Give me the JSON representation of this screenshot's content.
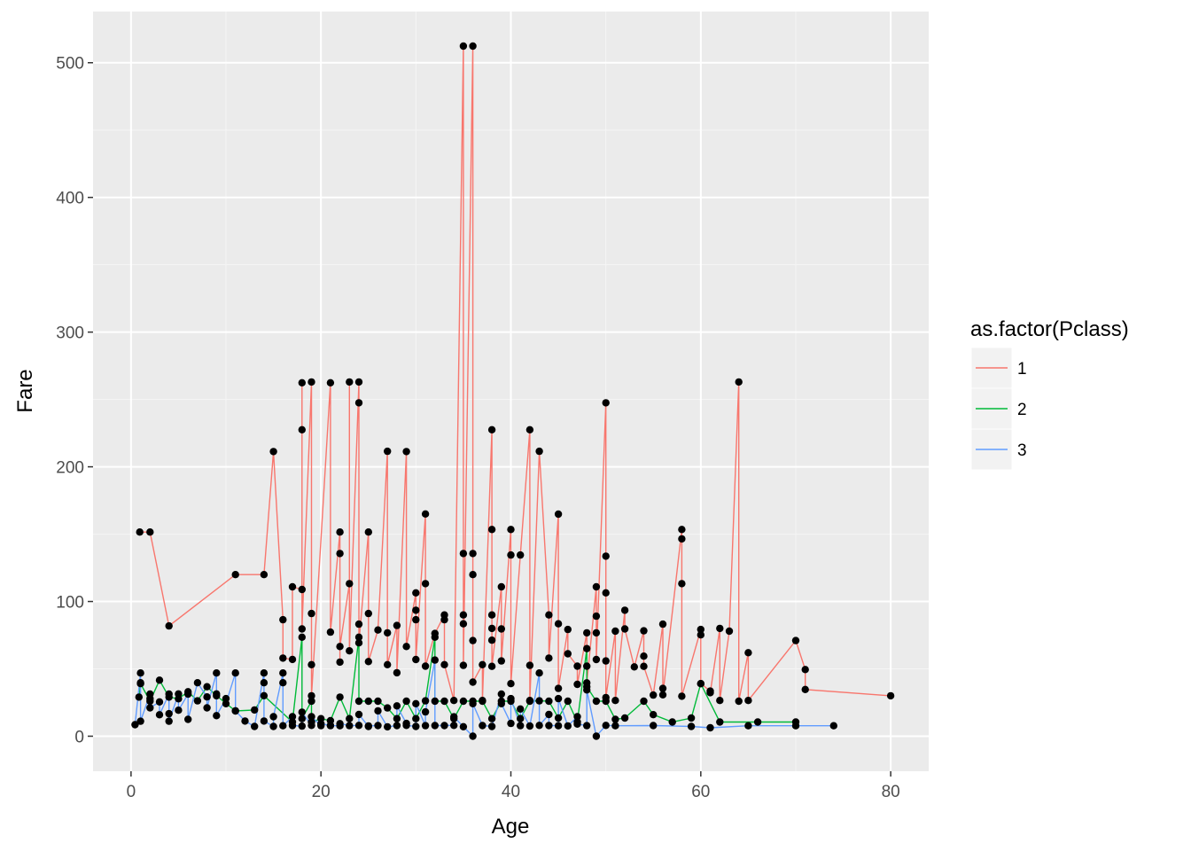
{
  "chart_data": {
    "type": "line",
    "xlabel": "Age",
    "ylabel": "Fare",
    "xlim": [
      -4,
      84
    ],
    "ylim": [
      -26,
      538
    ],
    "x_ticks": [
      0,
      20,
      40,
      60,
      80
    ],
    "y_ticks": [
      0,
      100,
      200,
      300,
      400,
      500
    ],
    "x_tick_labels": [
      "0",
      "20",
      "40",
      "60",
      "80"
    ],
    "y_tick_labels": [
      "0",
      "100",
      "200",
      "300",
      "400",
      "500"
    ],
    "grid": true,
    "legend": {
      "title": "as.factor(Pclass)",
      "position": "right"
    },
    "series": [
      {
        "name": "1",
        "color": "#F8766D",
        "points": [
          [
            0.92,
            151.55
          ],
          [
            2,
            151.55
          ],
          [
            4,
            81.86
          ],
          [
            11,
            120
          ],
          [
            14,
            120
          ],
          [
            15,
            211.34
          ],
          [
            16,
            86.5
          ],
          [
            16,
            57.98
          ],
          [
            17,
            57
          ],
          [
            17,
            110.88
          ],
          [
            18,
            108.9
          ],
          [
            18,
            262.38
          ],
          [
            18,
            227.53
          ],
          [
            18,
            79.65
          ],
          [
            19,
            263
          ],
          [
            19,
            91.08
          ],
          [
            19,
            53.1
          ],
          [
            19,
            30
          ],
          [
            21,
            262.38
          ],
          [
            21,
            77.29
          ],
          [
            22,
            151.55
          ],
          [
            22,
            135.63
          ],
          [
            22,
            55
          ],
          [
            22,
            66.6
          ],
          [
            23,
            113.28
          ],
          [
            23,
            263
          ],
          [
            23,
            63.36
          ],
          [
            24,
            263
          ],
          [
            24,
            247.52
          ],
          [
            24,
            83.16
          ],
          [
            24,
            69.3
          ],
          [
            25,
            151.55
          ],
          [
            25,
            91.08
          ],
          [
            25,
            55.44
          ],
          [
            26,
            78.85
          ],
          [
            27,
            211.5
          ],
          [
            27,
            76.73
          ],
          [
            27,
            53.1
          ],
          [
            28,
            82.17
          ],
          [
            28,
            47.1
          ],
          [
            29,
            211.34
          ],
          [
            29,
            66.6
          ],
          [
            30,
            106.43
          ],
          [
            30,
            93.5
          ],
          [
            30,
            86.5
          ],
          [
            30,
            56.93
          ],
          [
            31,
            165
          ],
          [
            31,
            113.28
          ],
          [
            31,
            52
          ],
          [
            32,
            76.29
          ],
          [
            33,
            90
          ],
          [
            33,
            86.5
          ],
          [
            33,
            53.1
          ],
          [
            34,
            26.55
          ],
          [
            35,
            512.33
          ],
          [
            35,
            135.63
          ],
          [
            35,
            90
          ],
          [
            35,
            83.47
          ],
          [
            35,
            52.55
          ],
          [
            36,
            512.33
          ],
          [
            36,
            135.63
          ],
          [
            36,
            120
          ],
          [
            36,
            71
          ],
          [
            36,
            40.13
          ],
          [
            37,
            53.1
          ],
          [
            37,
            26.55
          ],
          [
            38,
            227.53
          ],
          [
            38,
            153.46
          ],
          [
            38,
            90
          ],
          [
            38,
            80
          ],
          [
            38,
            71.28
          ],
          [
            38,
            51.86
          ],
          [
            39,
            110.88
          ],
          [
            39,
            79.65
          ],
          [
            39,
            55.9
          ],
          [
            40,
            153.46
          ],
          [
            40,
            134.5
          ],
          [
            40,
            39
          ],
          [
            41,
            134.5
          ],
          [
            42,
            227.53
          ],
          [
            42,
            52.55
          ],
          [
            42,
            26.55
          ],
          [
            43,
            211.5
          ],
          [
            44,
            90
          ],
          [
            44,
            57.98
          ],
          [
            45,
            164.87
          ],
          [
            45,
            83.47
          ],
          [
            45,
            35.5
          ],
          [
            46,
            79.2
          ],
          [
            46,
            61.18
          ],
          [
            47,
            52
          ],
          [
            47,
            38.5
          ],
          [
            48,
            76.73
          ],
          [
            48,
            52
          ],
          [
            48,
            39.6
          ],
          [
            49,
            110.88
          ],
          [
            49,
            89.1
          ],
          [
            49,
            76.73
          ],
          [
            49,
            56.93
          ],
          [
            50,
            247.52
          ],
          [
            50,
            133.65
          ],
          [
            50,
            106.43
          ],
          [
            50,
            55.9
          ],
          [
            50,
            28.71
          ],
          [
            51,
            77.96
          ],
          [
            51,
            26.55
          ],
          [
            52,
            93.5
          ],
          [
            52,
            79.65
          ],
          [
            53,
            51.48
          ],
          [
            54,
            78.27
          ],
          [
            54,
            59.4
          ],
          [
            54,
            51.86
          ],
          [
            55,
            30.5
          ],
          [
            56,
            83.16
          ],
          [
            56,
            35.5
          ],
          [
            56,
            30.7
          ],
          [
            58,
            153.46
          ],
          [
            58,
            146.52
          ],
          [
            58,
            113.28
          ],
          [
            58,
            29.7
          ],
          [
            60,
            79.2
          ],
          [
            60,
            75.25
          ],
          [
            60,
            39
          ],
          [
            61,
            33.5
          ],
          [
            61,
            32.32
          ],
          [
            62,
            80
          ],
          [
            62,
            26.55
          ],
          [
            63,
            77.96
          ],
          [
            64,
            263
          ],
          [
            64,
            26
          ],
          [
            65,
            61.98
          ],
          [
            65,
            26.55
          ],
          [
            70,
            71
          ],
          [
            71,
            49.5
          ],
          [
            71,
            34.65
          ],
          [
            80,
            30
          ]
        ]
      },
      {
        "name": "2",
        "color": "#00BA38",
        "points": [
          [
            0.83,
            29
          ],
          [
            1,
            39
          ],
          [
            2,
            26
          ],
          [
            3,
            41.58
          ],
          [
            4,
            29
          ],
          [
            5,
            27.75
          ],
          [
            6,
            33
          ],
          [
            7,
            26.25
          ],
          [
            8,
            36.75
          ],
          [
            9,
            30
          ],
          [
            11,
            18.75
          ],
          [
            13,
            19.5
          ],
          [
            14,
            30.07
          ],
          [
            17,
            10.5
          ],
          [
            18,
            73.5
          ],
          [
            18,
            13
          ],
          [
            19,
            26
          ],
          [
            19,
            10.5
          ],
          [
            20,
            13
          ],
          [
            21,
            11.5
          ],
          [
            22,
            29
          ],
          [
            23,
            13
          ],
          [
            24,
            73.5
          ],
          [
            24,
            26
          ],
          [
            25,
            26
          ],
          [
            26,
            26
          ],
          [
            27,
            21
          ],
          [
            28,
            13
          ],
          [
            29,
            26
          ],
          [
            30,
            13
          ],
          [
            31,
            26.25
          ],
          [
            32,
            73.5
          ],
          [
            32,
            26
          ],
          [
            33,
            26
          ],
          [
            34,
            13
          ],
          [
            35,
            26
          ],
          [
            36,
            26
          ],
          [
            37,
            26
          ],
          [
            38,
            13
          ],
          [
            39,
            26
          ],
          [
            40,
            26
          ],
          [
            41,
            13
          ],
          [
            42,
            26
          ],
          [
            43,
            26.25
          ],
          [
            44,
            26
          ],
          [
            45,
            13.5
          ],
          [
            46,
            26
          ],
          [
            47,
            10.5
          ],
          [
            48,
            65
          ],
          [
            48,
            36.75
          ],
          [
            49,
            26
          ],
          [
            50,
            26
          ],
          [
            51,
            12.53
          ],
          [
            52,
            13.5
          ],
          [
            54,
            26
          ],
          [
            55,
            16
          ],
          [
            57,
            10.5
          ],
          [
            59,
            13.5
          ],
          [
            60,
            39
          ],
          [
            62,
            10.5
          ],
          [
            66,
            10.5
          ],
          [
            70,
            10.5
          ]
        ]
      },
      {
        "name": "3",
        "color": "#619CFF",
        "points": [
          [
            0.42,
            8.52
          ],
          [
            1,
            46.9
          ],
          [
            1,
            39.69
          ],
          [
            1,
            11.13
          ],
          [
            2,
            31.28
          ],
          [
            2,
            27.9
          ],
          [
            2,
            21.07
          ],
          [
            3,
            25.47
          ],
          [
            3,
            15.9
          ],
          [
            4,
            31.27
          ],
          [
            4,
            16.7
          ],
          [
            4,
            11.13
          ],
          [
            5,
            31.39
          ],
          [
            5,
            19.26
          ],
          [
            6,
            31.27
          ],
          [
            6,
            12.48
          ],
          [
            7,
            39.69
          ],
          [
            8,
            29.13
          ],
          [
            8,
            21.07
          ],
          [
            9,
            46.9
          ],
          [
            9,
            31.39
          ],
          [
            9,
            15.25
          ],
          [
            10,
            27.9
          ],
          [
            10,
            24.15
          ],
          [
            11,
            46.9
          ],
          [
            11,
            18.79
          ],
          [
            12,
            11.24
          ],
          [
            13,
            7.23
          ],
          [
            14,
            46.9
          ],
          [
            14,
            39.69
          ],
          [
            14,
            11.24
          ],
          [
            15,
            7.23
          ],
          [
            15,
            14.45
          ],
          [
            16,
            46.9
          ],
          [
            16,
            39.69
          ],
          [
            16,
            7.75
          ],
          [
            17,
            14.46
          ],
          [
            17,
            7.9
          ],
          [
            18,
            7.5
          ],
          [
            18,
            17.8
          ],
          [
            19,
            8.05
          ],
          [
            19,
            14.5
          ],
          [
            20,
            7.85
          ],
          [
            20,
            9.22
          ],
          [
            21,
            8.05
          ],
          [
            21,
            7.8
          ],
          [
            22,
            7.75
          ],
          [
            22,
            9.35
          ],
          [
            23,
            7.85
          ],
          [
            24,
            8.05
          ],
          [
            24,
            16.1
          ],
          [
            25,
            7.25
          ],
          [
            25,
            7.65
          ],
          [
            26,
            7.9
          ],
          [
            26,
            18.79
          ],
          [
            27,
            6.97
          ],
          [
            28,
            7.9
          ],
          [
            28,
            22.53
          ],
          [
            29,
            9.48
          ],
          [
            29,
            8.05
          ],
          [
            30,
            7.23
          ],
          [
            30,
            24.15
          ],
          [
            31,
            7.85
          ],
          [
            31,
            18
          ],
          [
            32,
            56.5
          ],
          [
            32,
            7.92
          ],
          [
            33,
            7.9
          ],
          [
            34,
            8.05
          ],
          [
            34,
            14.4
          ],
          [
            35,
            7.05
          ],
          [
            36,
            0
          ],
          [
            36,
            24.15
          ],
          [
            37,
            7.92
          ],
          [
            38,
            7.23
          ],
          [
            39,
            31.27
          ],
          [
            39,
            24.15
          ],
          [
            40,
            9.48
          ],
          [
            40,
            27.9
          ],
          [
            41,
            7.85
          ],
          [
            41,
            20.21
          ],
          [
            42,
            7.55
          ],
          [
            43,
            46.9
          ],
          [
            43,
            8.05
          ],
          [
            44,
            16.1
          ],
          [
            44,
            7.92
          ],
          [
            45,
            7.75
          ],
          [
            45,
            27.9
          ],
          [
            46,
            7.6
          ],
          [
            47,
            14.5
          ],
          [
            47,
            9
          ],
          [
            48,
            7.85
          ],
          [
            48,
            34.38
          ],
          [
            49,
            0
          ],
          [
            50,
            8.05
          ],
          [
            51,
            7.75
          ],
          [
            55,
            7.92
          ],
          [
            59,
            7.25
          ],
          [
            61,
            6.24
          ],
          [
            65,
            7.75
          ],
          [
            70,
            7.75
          ],
          [
            74,
            7.78
          ]
        ]
      }
    ]
  }
}
